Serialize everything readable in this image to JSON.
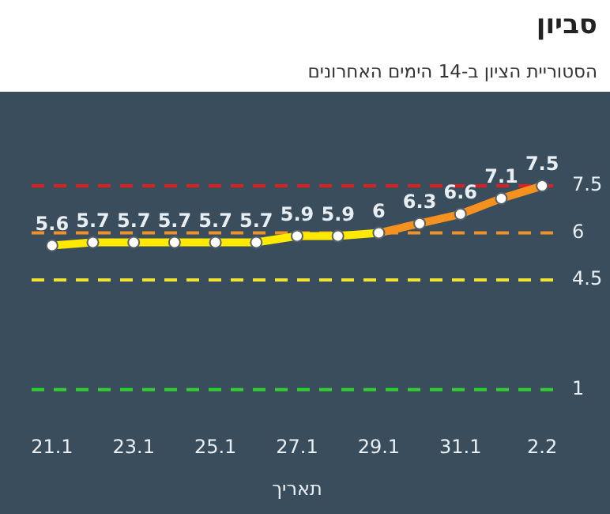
{
  "chart_data": {
    "type": "line",
    "title": "סביון",
    "subtitle": "הסטוריית הציון ב-14 הימים האחרונים",
    "xlabel": "תאריך",
    "categories": [
      "21.1",
      null,
      "23.1",
      null,
      "25.1",
      null,
      "27.1",
      null,
      "29.1",
      null,
      "31.1",
      null,
      "2.2"
    ],
    "series": [
      {
        "color": "#ffea00",
        "values": [
          5.6,
          5.7,
          5.7,
          5.7,
          5.7,
          5.7,
          5.9,
          5.9,
          6,
          null,
          null,
          null,
          null
        ],
        "value_labels": [
          "5.6",
          "5.7",
          "5.7",
          "5.7",
          "5.7",
          "5.7",
          "5.9",
          "5.9",
          "6",
          null,
          null,
          null,
          null
        ]
      },
      {
        "color": "#f5911e",
        "values": [
          null,
          null,
          null,
          null,
          null,
          null,
          null,
          null,
          6,
          6.3,
          6.6,
          7.1,
          7.5
        ],
        "value_labels": [
          null,
          null,
          null,
          null,
          null,
          null,
          null,
          null,
          null,
          "6.3",
          "6.6",
          "7.1",
          "7.5"
        ]
      }
    ],
    "ref_lines": [
      {
        "axis": "y",
        "value": 7.5,
        "label": "7.5",
        "color": "#e02020",
        "line_style": "dashed"
      },
      {
        "axis": "y",
        "value": 6,
        "label": "6",
        "color": "#f0922a",
        "line_style": "dashed"
      },
      {
        "axis": "y",
        "value": 4.5,
        "label": "4.5",
        "color": "#f2e233",
        "line_style": "dashed"
      },
      {
        "axis": "y",
        "value": 1,
        "label": "1",
        "color": "#2fd12f",
        "line_style": "dashed"
      }
    ],
    "tick_labels": "x",
    "grid": false,
    "legend": false,
    "marker": "circle",
    "line_style": "solid"
  }
}
